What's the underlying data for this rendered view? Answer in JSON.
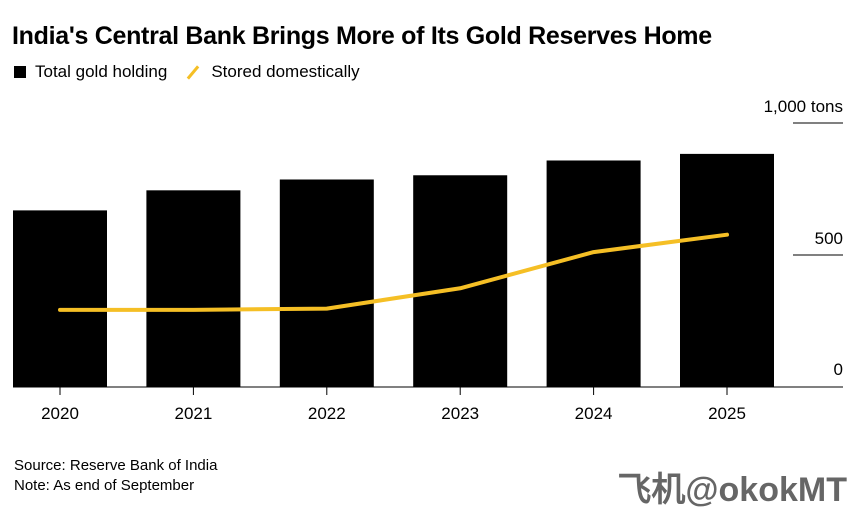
{
  "chart_data": {
    "type": "bar",
    "title": "India's Central Bank Brings More of Its Gold Reserves Home",
    "categories": [
      "2020",
      "2021",
      "2022",
      "2023",
      "2024",
      "2025"
    ],
    "series": [
      {
        "name": "Total gold holding",
        "type": "bar",
        "color": "#000000",
        "values": [
          669,
          745,
          786,
          802,
          858,
          883
        ]
      },
      {
        "name": "Stored domestically",
        "type": "line",
        "color": "#f5bf25",
        "values": [
          292,
          292,
          297,
          374,
          511,
          577
        ]
      }
    ],
    "y_axis": {
      "position": "right",
      "ticks": [
        0,
        500,
        1000
      ],
      "tick_labels": [
        "0",
        "500",
        "1,000 tons"
      ],
      "ylim": [
        0,
        1000
      ]
    },
    "notes": [
      "Source: Reserve Bank of India",
      "Note: As end of September"
    ]
  },
  "watermark": "飞机@okokMT"
}
